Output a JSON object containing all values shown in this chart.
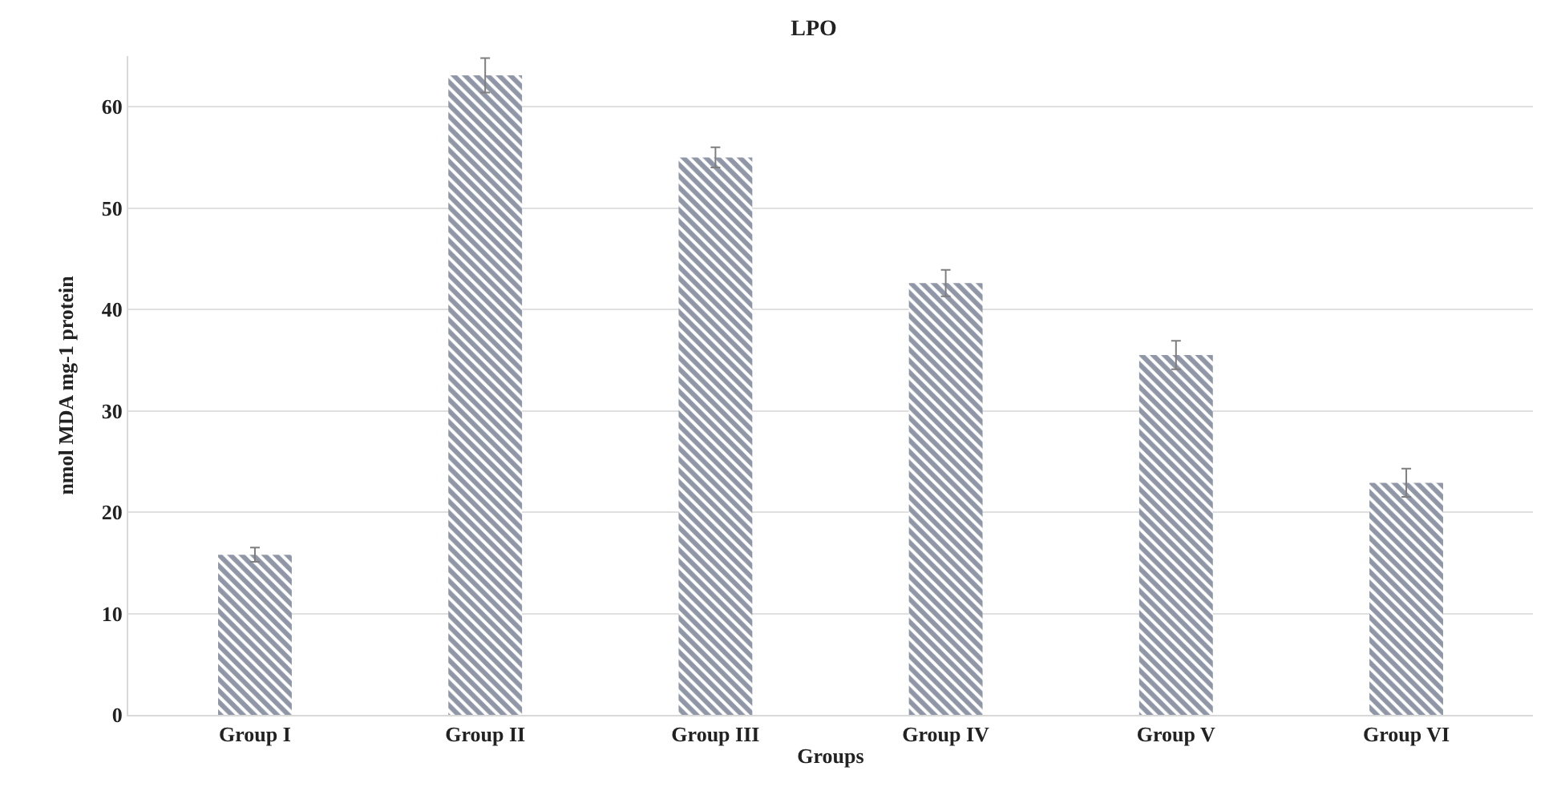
{
  "chart_data": {
    "type": "bar",
    "title": "LPO",
    "xlabel": "Groups",
    "ylabel": "nmol MDA mg-1 protein",
    "categories": [
      "Group I",
      "Group II",
      "Group III",
      "Group IV",
      "Group V",
      "Group VI"
    ],
    "values": [
      15.8,
      63.1,
      55.0,
      42.6,
      35.5,
      22.9
    ],
    "errors": [
      0.7,
      1.7,
      1.0,
      1.3,
      1.4,
      1.4
    ],
    "color": "#1f2d4e",
    "ylim": [
      0,
      65
    ],
    "yticks": [
      0,
      10,
      20,
      30,
      40,
      50,
      60
    ],
    "grid": "y"
  }
}
